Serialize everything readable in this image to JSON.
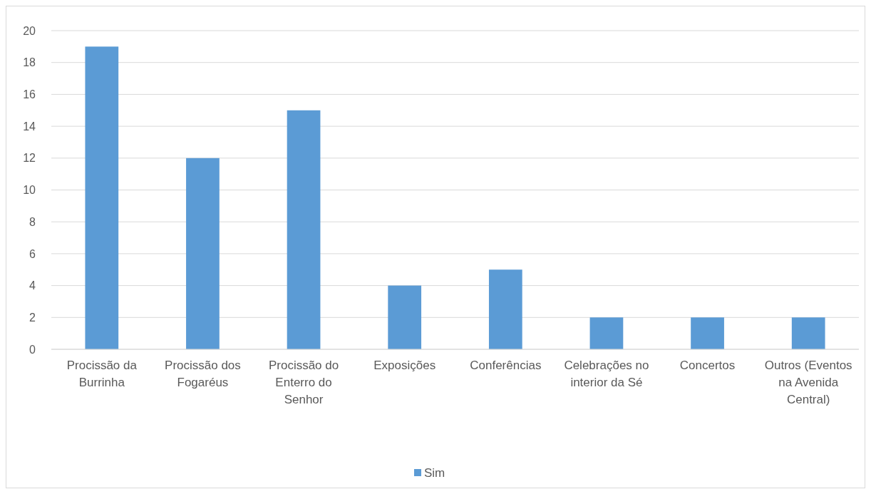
{
  "chart_data": {
    "type": "bar",
    "categories": [
      "Procissão da Burrinha",
      "Procissão dos Fogaréus",
      "Procissão do Enterro do Senhor",
      "Exposições",
      "Conferências",
      "Celebrações no interior da Sé",
      "Concertos",
      "Outros (Eventos na Avenida Central)"
    ],
    "series": [
      {
        "name": "Sim",
        "color": "#5b9bd5",
        "values": [
          19,
          12,
          15,
          4,
          5,
          2,
          2,
          2
        ]
      }
    ],
    "ylim": [
      0,
      20
    ],
    "yticks": [
      0,
      2,
      4,
      6,
      8,
      10,
      12,
      14,
      16,
      18,
      20
    ],
    "grid": "y",
    "legend": "bottom"
  }
}
